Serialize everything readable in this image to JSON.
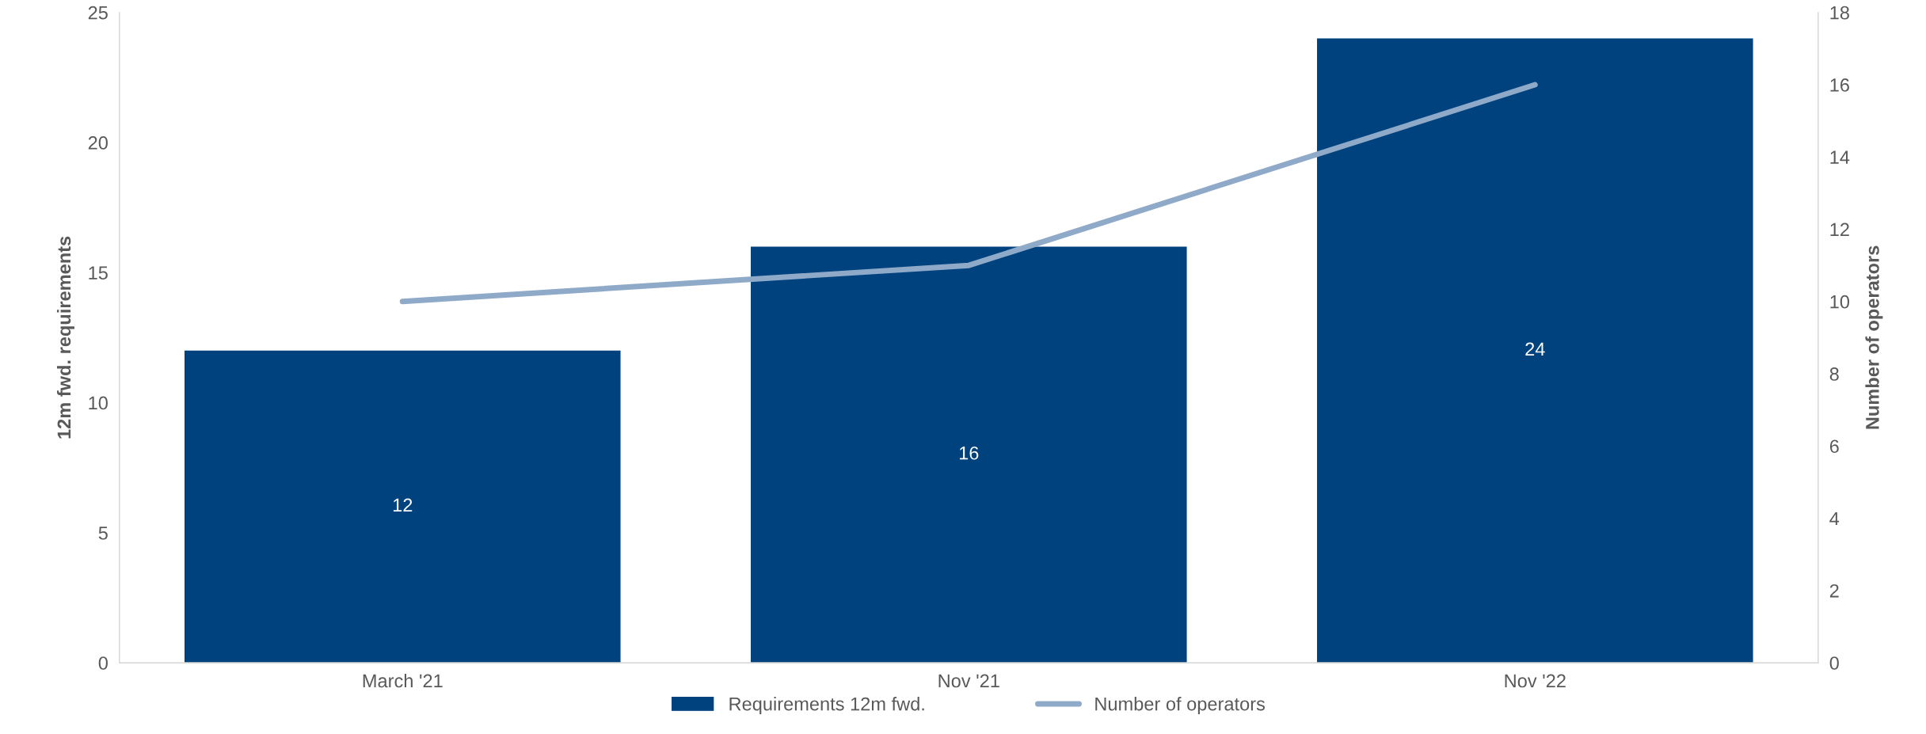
{
  "chart_data": {
    "type": "bar",
    "categories": [
      "March '21",
      "Nov '21",
      "Nov '22"
    ],
    "series": [
      {
        "name": "Requirements 12m fwd.",
        "color": "#00427e",
        "values": [
          12,
          16,
          24
        ],
        "value_labels": [
          "12",
          "16",
          "24"
        ]
      },
      {
        "name": "Number of operators",
        "type": "line",
        "axis": "y2",
        "color": "#8eaac8",
        "values": [
          10,
          11,
          16
        ]
      }
    ],
    "ylabel": "12m fwd. requirements",
    "y2label": "Number of operators",
    "ylim": [
      0,
      25
    ],
    "yticks": [
      0,
      5,
      10,
      15,
      20,
      25
    ],
    "y2lim": [
      0,
      18
    ],
    "y2ticks": [
      0,
      2,
      4,
      6,
      8,
      10,
      12,
      14,
      16,
      18
    ],
    "legend": "bottom",
    "grid": false,
    "marker": "none"
  }
}
